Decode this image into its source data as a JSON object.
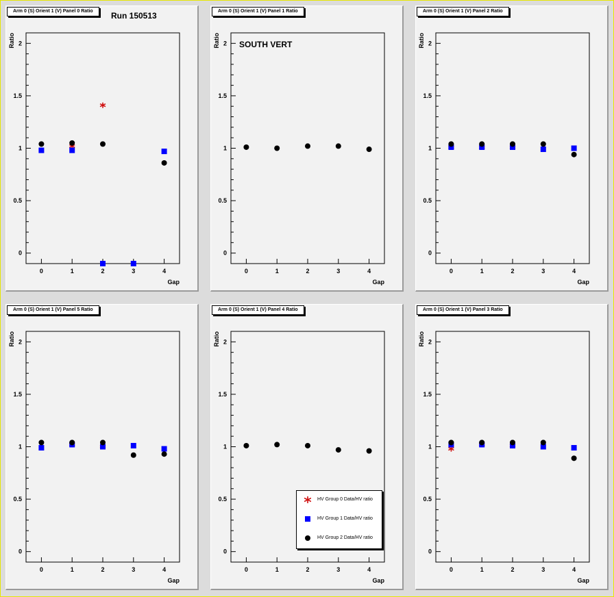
{
  "page": {
    "run_label": "Run 150513",
    "region_label": "SOUTH VERT"
  },
  "colors": {
    "group0": "#d01010",
    "group1": "#0000ff",
    "group2": "#000000",
    "pad_fill": "#f2f2f2",
    "frame_fill": "#dcdcdc"
  },
  "legend": {
    "entries": [
      {
        "label": "HV Group 0 Data/HV ratio",
        "marker": "star",
        "color": "#d01010"
      },
      {
        "label": "HV Group 1 Data/HV ratio",
        "marker": "square",
        "color": "#0000ff"
      },
      {
        "label": "HV Group 2 Data/HV ratio",
        "marker": "circle",
        "color": "#000000"
      }
    ]
  },
  "chart_data": [
    {
      "type": "scatter",
      "title": "Arm 0 (S) Orient 1 (V) Panel 0 Ratio",
      "xlabel": "Gap",
      "ylabel": "Ratio",
      "xlim": [
        -0.5,
        4.5
      ],
      "ylim": [
        -0.1,
        2.1
      ],
      "xticks": [
        "0",
        "1",
        "2",
        "3",
        "4"
      ],
      "yticks": [
        "0",
        "0.5",
        "1",
        "1.5",
        "2"
      ],
      "x": [
        0,
        1,
        2,
        3,
        4
      ],
      "series": [
        {
          "name": "HV Group 0 Data/HV ratio",
          "values": [
            null,
            1.02,
            1.41,
            null,
            null
          ]
        },
        {
          "name": "HV Group 1 Data/HV ratio",
          "values": [
            0.98,
            0.98,
            -0.1,
            -0.1,
            0.97
          ]
        },
        {
          "name": "HV Group 2 Data/HV ratio",
          "values": [
            1.04,
            1.05,
            1.04,
            null,
            0.86
          ]
        }
      ]
    },
    {
      "type": "scatter",
      "title": "Arm 0 (S) Orient 1 (V) Panel 1 Ratio",
      "xlabel": "Gap",
      "ylabel": "Ratio",
      "xlim": [
        -0.5,
        4.5
      ],
      "ylim": [
        -0.1,
        2.1
      ],
      "xticks": [
        "0",
        "1",
        "2",
        "3",
        "4"
      ],
      "yticks": [
        "0",
        "0.5",
        "1",
        "1.5",
        "2"
      ],
      "x": [
        0,
        1,
        2,
        3,
        4
      ],
      "series": [
        {
          "name": "HV Group 0 Data/HV ratio",
          "values": [
            null,
            null,
            null,
            null,
            null
          ]
        },
        {
          "name": "HV Group 1 Data/HV ratio",
          "values": [
            null,
            null,
            null,
            null,
            null
          ]
        },
        {
          "name": "HV Group 2 Data/HV ratio",
          "values": [
            1.01,
            1.0,
            1.02,
            1.02,
            0.99
          ]
        }
      ]
    },
    {
      "type": "scatter",
      "title": "Arm 0 (S) Orient 1 (V) Panel 2 Ratio",
      "xlabel": "Gap",
      "ylabel": "Ratio",
      "xlim": [
        -0.5,
        4.5
      ],
      "ylim": [
        -0.1,
        2.1
      ],
      "xticks": [
        "0",
        "1",
        "2",
        "3",
        "4"
      ],
      "yticks": [
        "0",
        "0.5",
        "1",
        "1.5",
        "2"
      ],
      "x": [
        0,
        1,
        2,
        3,
        4
      ],
      "series": [
        {
          "name": "HV Group 0 Data/HV ratio",
          "values": [
            1.01,
            1.01,
            1.01,
            null,
            null
          ]
        },
        {
          "name": "HV Group 1 Data/HV ratio",
          "values": [
            1.01,
            1.01,
            1.01,
            0.99,
            1.0
          ]
        },
        {
          "name": "HV Group 2 Data/HV ratio",
          "values": [
            1.04,
            1.04,
            1.04,
            1.04,
            0.94
          ]
        }
      ]
    },
    {
      "type": "scatter",
      "title": "Arm 0 (S) Orient 1 (V) Panel 5 Ratio",
      "xlabel": "Gap",
      "ylabel": "Ratio",
      "xlim": [
        -0.5,
        4.5
      ],
      "ylim": [
        -0.1,
        2.1
      ],
      "xticks": [
        "0",
        "1",
        "2",
        "3",
        "4"
      ],
      "yticks": [
        "0",
        "0.5",
        "1",
        "1.5",
        "2"
      ],
      "x": [
        0,
        1,
        2,
        3,
        4
      ],
      "series": [
        {
          "name": "HV Group 0 Data/HV ratio",
          "values": [
            null,
            1.02,
            1.0,
            null,
            null
          ]
        },
        {
          "name": "HV Group 1 Data/HV ratio",
          "values": [
            0.99,
            1.02,
            1.0,
            1.01,
            0.98
          ]
        },
        {
          "name": "HV Group 2 Data/HV ratio",
          "values": [
            1.04,
            1.04,
            1.04,
            0.92,
            0.93
          ]
        }
      ]
    },
    {
      "type": "scatter",
      "title": "Arm 0 (S) Orient 1 (V) Panel 4 Ratio",
      "xlabel": "Gap",
      "ylabel": "Ratio",
      "xlim": [
        -0.5,
        4.5
      ],
      "ylim": [
        -0.1,
        2.1
      ],
      "xticks": [
        "0",
        "1",
        "2",
        "3",
        "4"
      ],
      "yticks": [
        "0",
        "0.5",
        "1",
        "1.5",
        "2"
      ],
      "x": [
        0,
        1,
        2,
        3,
        4
      ],
      "series": [
        {
          "name": "HV Group 0 Data/HV ratio",
          "values": [
            null,
            null,
            null,
            null,
            null
          ]
        },
        {
          "name": "HV Group 1 Data/HV ratio",
          "values": [
            null,
            null,
            null,
            null,
            null
          ]
        },
        {
          "name": "HV Group 2 Data/HV ratio",
          "values": [
            1.01,
            1.02,
            1.01,
            0.97,
            0.96
          ]
        }
      ]
    },
    {
      "type": "scatter",
      "title": "Arm 0 (S) Orient 1 (V) Panel 3 Ratio",
      "xlabel": "Gap",
      "ylabel": "Ratio",
      "xlim": [
        -0.5,
        4.5
      ],
      "ylim": [
        -0.1,
        2.1
      ],
      "xticks": [
        "0",
        "1",
        "2",
        "3",
        "4"
      ],
      "yticks": [
        "0",
        "0.5",
        "1",
        "1.5",
        "2"
      ],
      "x": [
        0,
        1,
        2,
        3,
        4
      ],
      "series": [
        {
          "name": "HV Group 0 Data/HV ratio",
          "values": [
            0.98,
            1.02,
            1.01,
            null,
            null
          ]
        },
        {
          "name": "HV Group 1 Data/HV ratio",
          "values": [
            1.02,
            1.02,
            1.01,
            1.0,
            0.99
          ]
        },
        {
          "name": "HV Group 2 Data/HV ratio",
          "values": [
            1.04,
            1.04,
            1.04,
            1.04,
            0.89
          ]
        }
      ]
    }
  ]
}
